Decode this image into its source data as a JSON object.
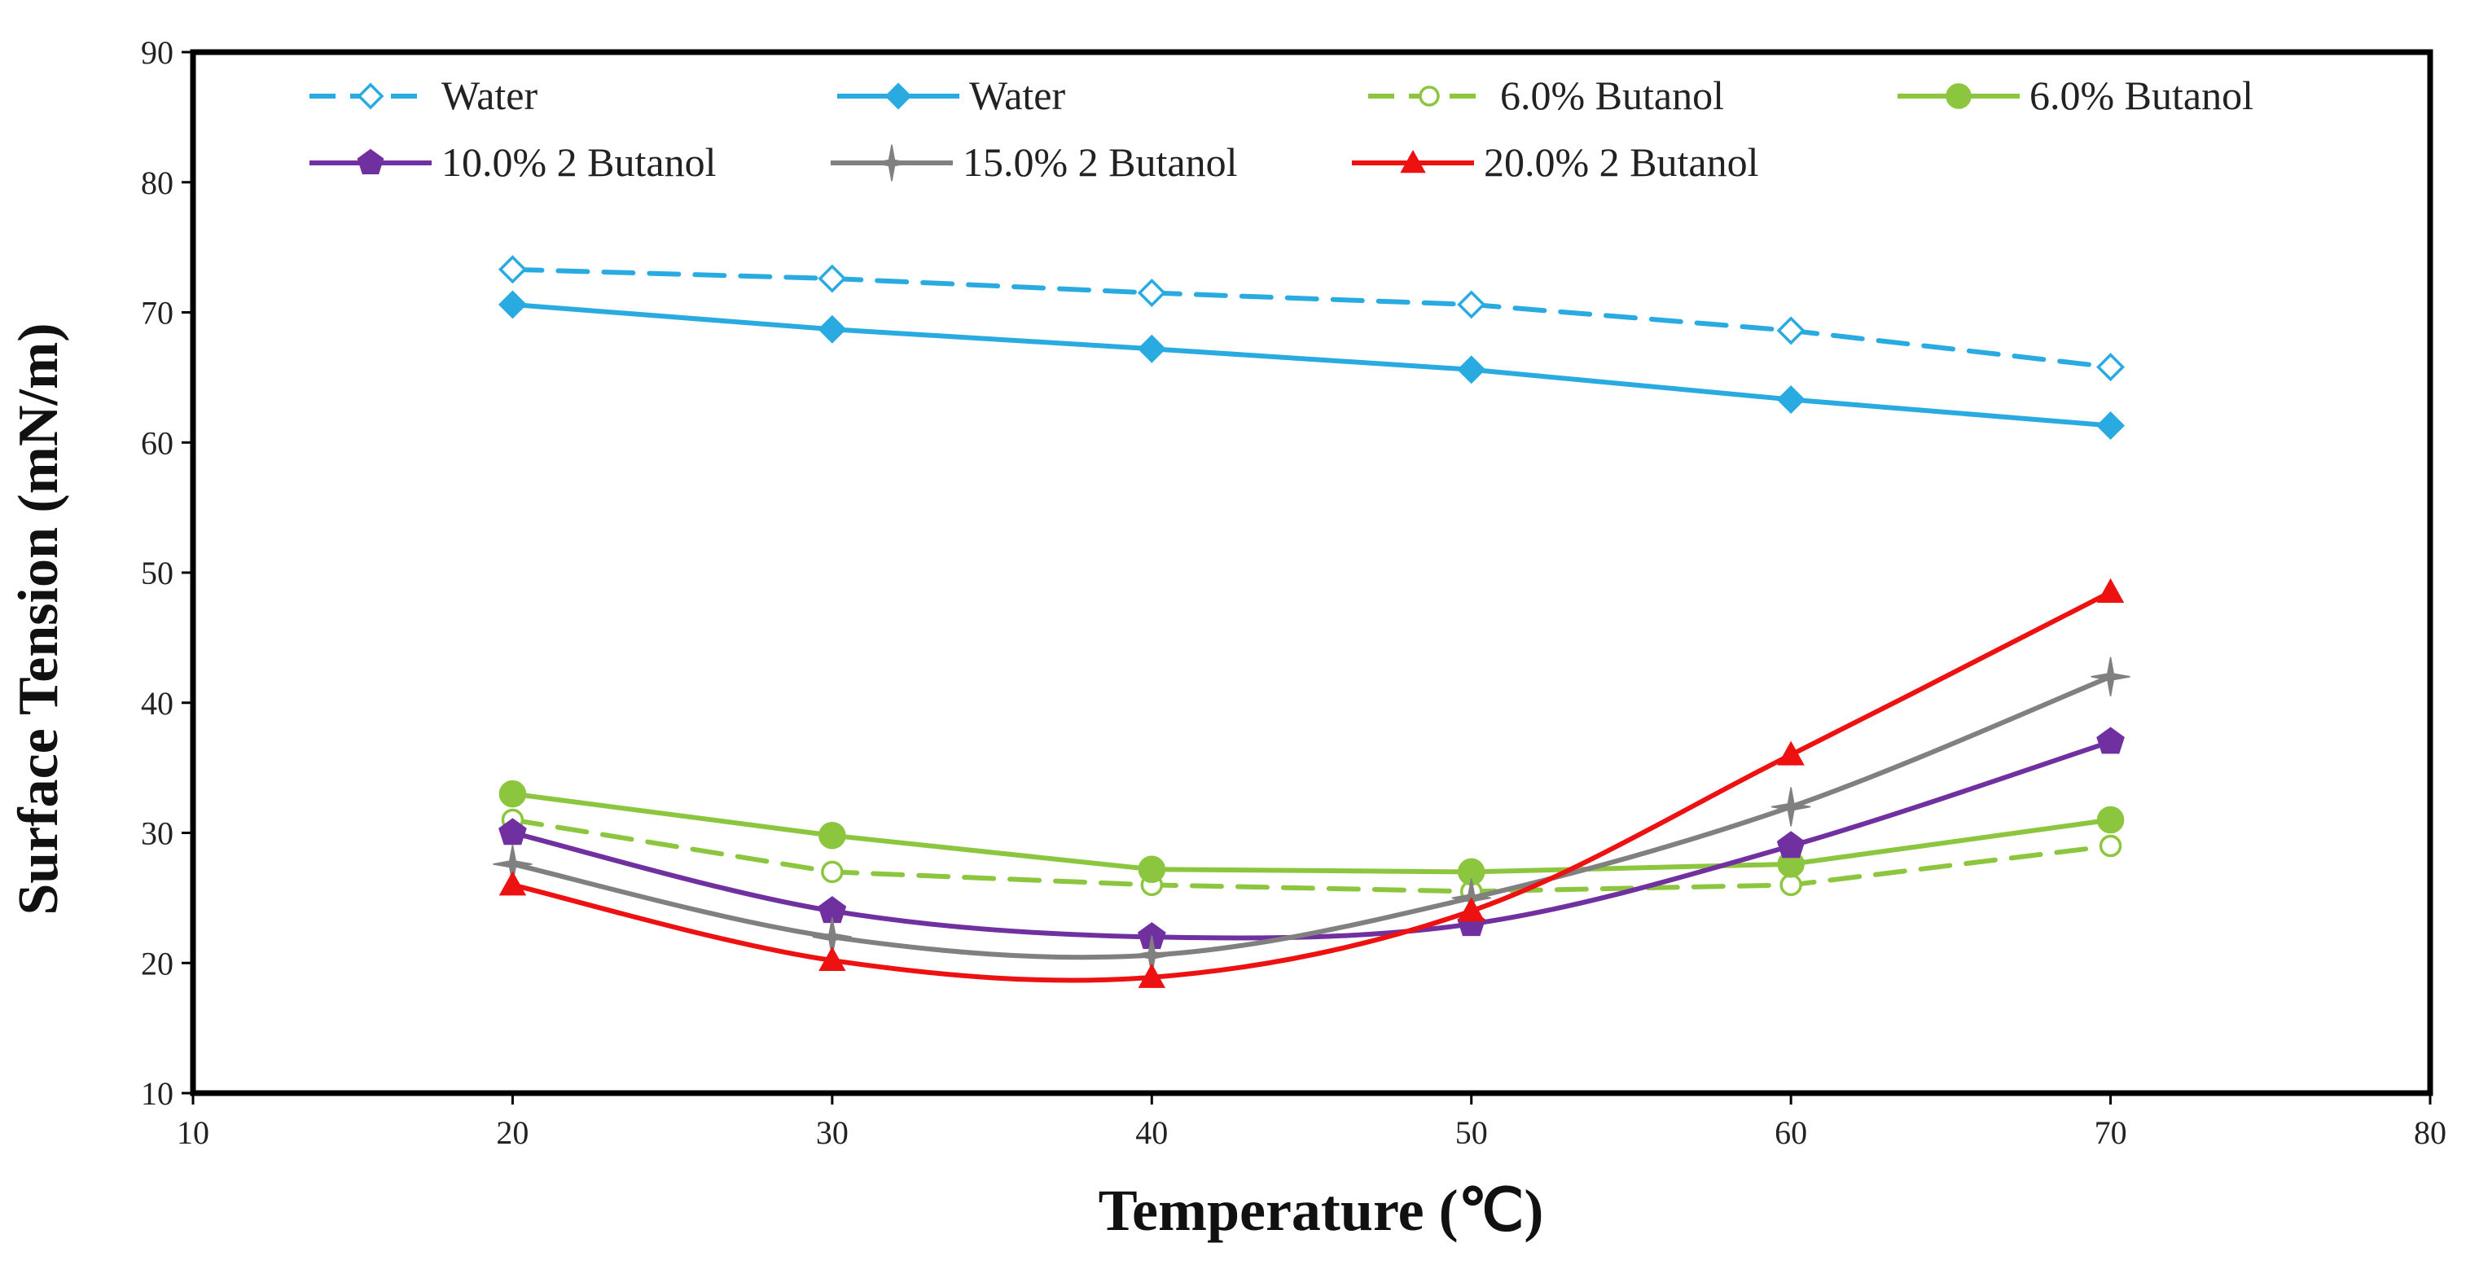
{
  "chart_data": {
    "type": "line",
    "title": "",
    "xlabel": "Temperature (℃)",
    "ylabel": "Surface Tension (mN/m)",
    "xlim": [
      10,
      80
    ],
    "ylim": [
      10,
      90
    ],
    "xticks": [
      10,
      20,
      30,
      40,
      50,
      60,
      70,
      80
    ],
    "yticks": [
      10,
      20,
      30,
      40,
      50,
      60,
      70,
      80,
      90
    ],
    "grid": false,
    "legend_position": "top",
    "x": [
      20,
      30,
      40,
      50,
      60,
      70
    ],
    "series": [
      {
        "name": "Water",
        "values": [
          73.3,
          72.6,
          71.5,
          70.6,
          68.6,
          65.8
        ],
        "color": "#29abe2",
        "dashed": true,
        "marker": "diamond-open",
        "smooth": false
      },
      {
        "name": "Water",
        "values": [
          70.6,
          68.7,
          67.2,
          65.6,
          63.3,
          61.3
        ],
        "color": "#29abe2",
        "dashed": false,
        "marker": "diamond",
        "smooth": false
      },
      {
        "name": "6.0%   Butanol",
        "values": [
          31.0,
          27.0,
          26.0,
          25.5,
          26.0,
          29.0
        ],
        "color": "#8cc63f",
        "dashed": true,
        "marker": "circle-open",
        "smooth": false
      },
      {
        "name": "6.0%   Butanol",
        "values": [
          33.0,
          29.8,
          27.2,
          27.0,
          27.6,
          31.0
        ],
        "color": "#8cc63f",
        "dashed": false,
        "marker": "circle",
        "smooth": false
      },
      {
        "name": "10.0%   2 Butanol",
        "values": [
          30.0,
          24.0,
          22.0,
          23.0,
          29.0,
          37.0
        ],
        "color": "#7030a0",
        "dashed": false,
        "marker": "pentagon",
        "smooth": true
      },
      {
        "name": "15.0%   2 Butanol",
        "values": [
          27.6,
          22.0,
          20.6,
          25.0,
          32.0,
          42.0
        ],
        "color": "#808080",
        "dashed": false,
        "marker": "star",
        "smooth": true
      },
      {
        "name": "20.0%   2 Butanol",
        "values": [
          26.0,
          20.2,
          18.9,
          24.0,
          36.0,
          48.5
        ],
        "color": "#ee1111",
        "dashed": false,
        "marker": "triangle",
        "smooth": true
      }
    ]
  }
}
